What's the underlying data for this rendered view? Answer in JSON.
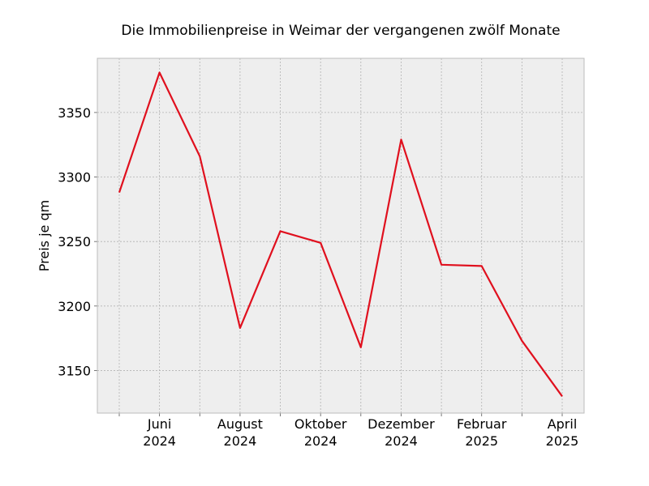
{
  "chart_data": {
    "type": "line",
    "title": "Die Immobilienpreise in Weimar der vergangenen zwölf Monate",
    "xlabel": "",
    "ylabel": "Preis je qm",
    "x": [
      "2024-05",
      "2024-06",
      "2024-07",
      "2024-08",
      "2024-09",
      "2024-10",
      "2024-11",
      "2024-12",
      "2025-01",
      "2025-02",
      "2025-03",
      "2025-04"
    ],
    "series": [
      {
        "values": [
          3288,
          3381,
          3316,
          3183,
          3258,
          3249,
          3168,
          3329,
          3232,
          3231,
          3173,
          3130
        ]
      }
    ],
    "x_tick_labels": [
      {
        "x": "2024-06",
        "lines": [
          "Juni",
          "2024"
        ]
      },
      {
        "x": "2024-08",
        "lines": [
          "August",
          "2024"
        ]
      },
      {
        "x": "2024-10",
        "lines": [
          "Oktober",
          "2024"
        ]
      },
      {
        "x": "2024-12",
        "lines": [
          "Dezember",
          "2024"
        ]
      },
      {
        "x": "2025-02",
        "lines": [
          "Februar",
          "2025"
        ]
      },
      {
        "x": "2025-04",
        "lines": [
          "April",
          "2025"
        ]
      }
    ],
    "y_ticks": [
      3150,
      3200,
      3250,
      3300,
      3350
    ],
    "ylim": [
      3117,
      3392
    ],
    "grid": true,
    "line_color": "#e0101e",
    "plot_background": "#eeeeee"
  }
}
